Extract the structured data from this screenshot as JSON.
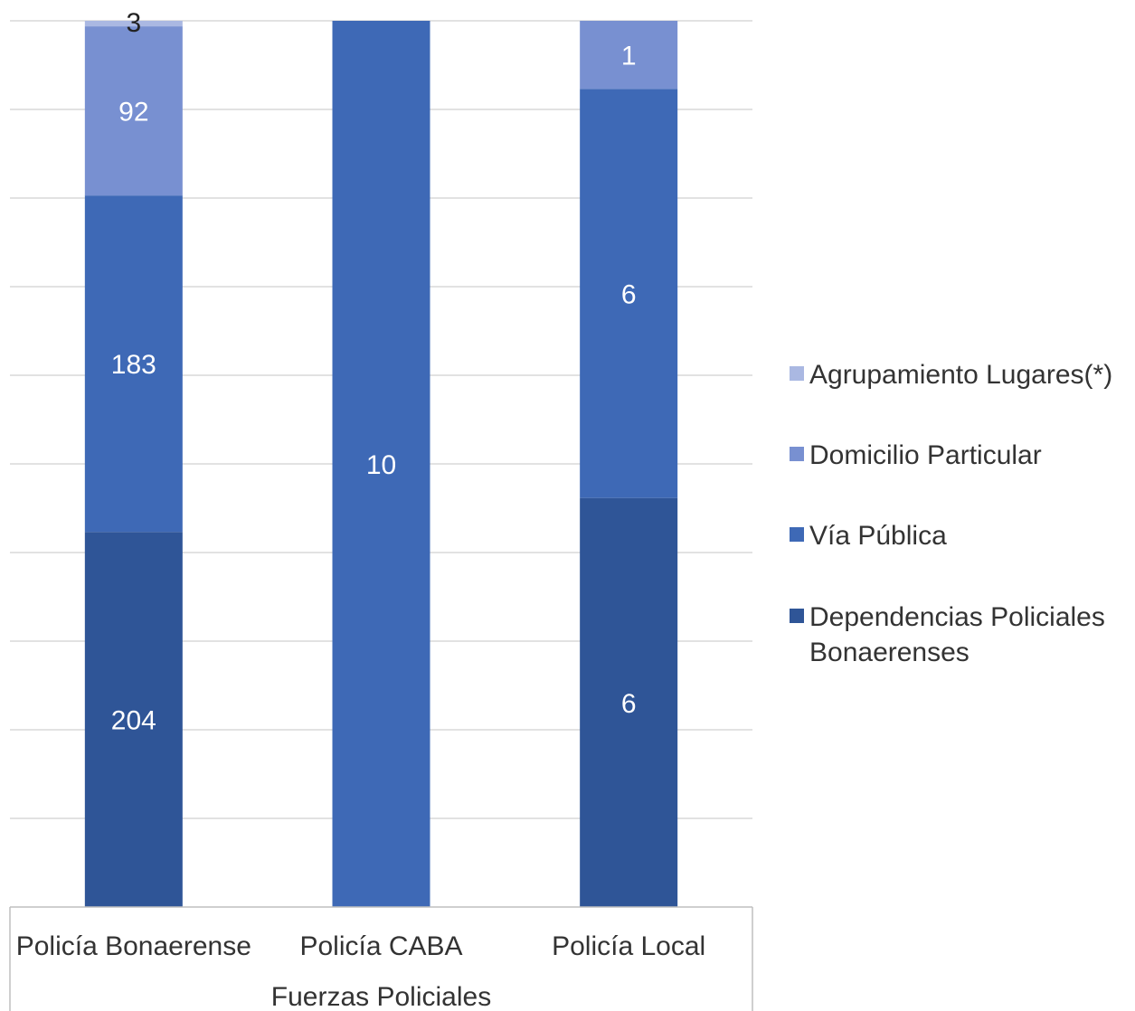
{
  "chart_data": {
    "type": "bar",
    "stacked": "percent",
    "categories": [
      "Policía Bonaerense",
      "Policía CABA",
      "Policía Local"
    ],
    "series": [
      {
        "name": "Dependencias Policiales Bonaerenses",
        "values": [
          204,
          0,
          6
        ],
        "color": "#2f5597"
      },
      {
        "name": "Vía Pública",
        "values": [
          183,
          10,
          6
        ],
        "color": "#3e69b6"
      },
      {
        "name": "Domicilio Particular",
        "values": [
          92,
          0,
          1
        ],
        "color": "#7890d1"
      },
      {
        "name": "Agrupamiento Lugares(*)",
        "values": [
          3,
          0,
          0
        ],
        "color": "#aab8e2"
      }
    ],
    "legend_order": [
      "Agrupamiento Lugares(*)",
      "Domicilio Particular",
      "Vía Pública",
      "Dependencias Policiales Bonaerenses"
    ],
    "xlabel": "Fuerzas Policiales",
    "ylabel": "",
    "title": "",
    "grid": true,
    "legend_position": "right"
  }
}
